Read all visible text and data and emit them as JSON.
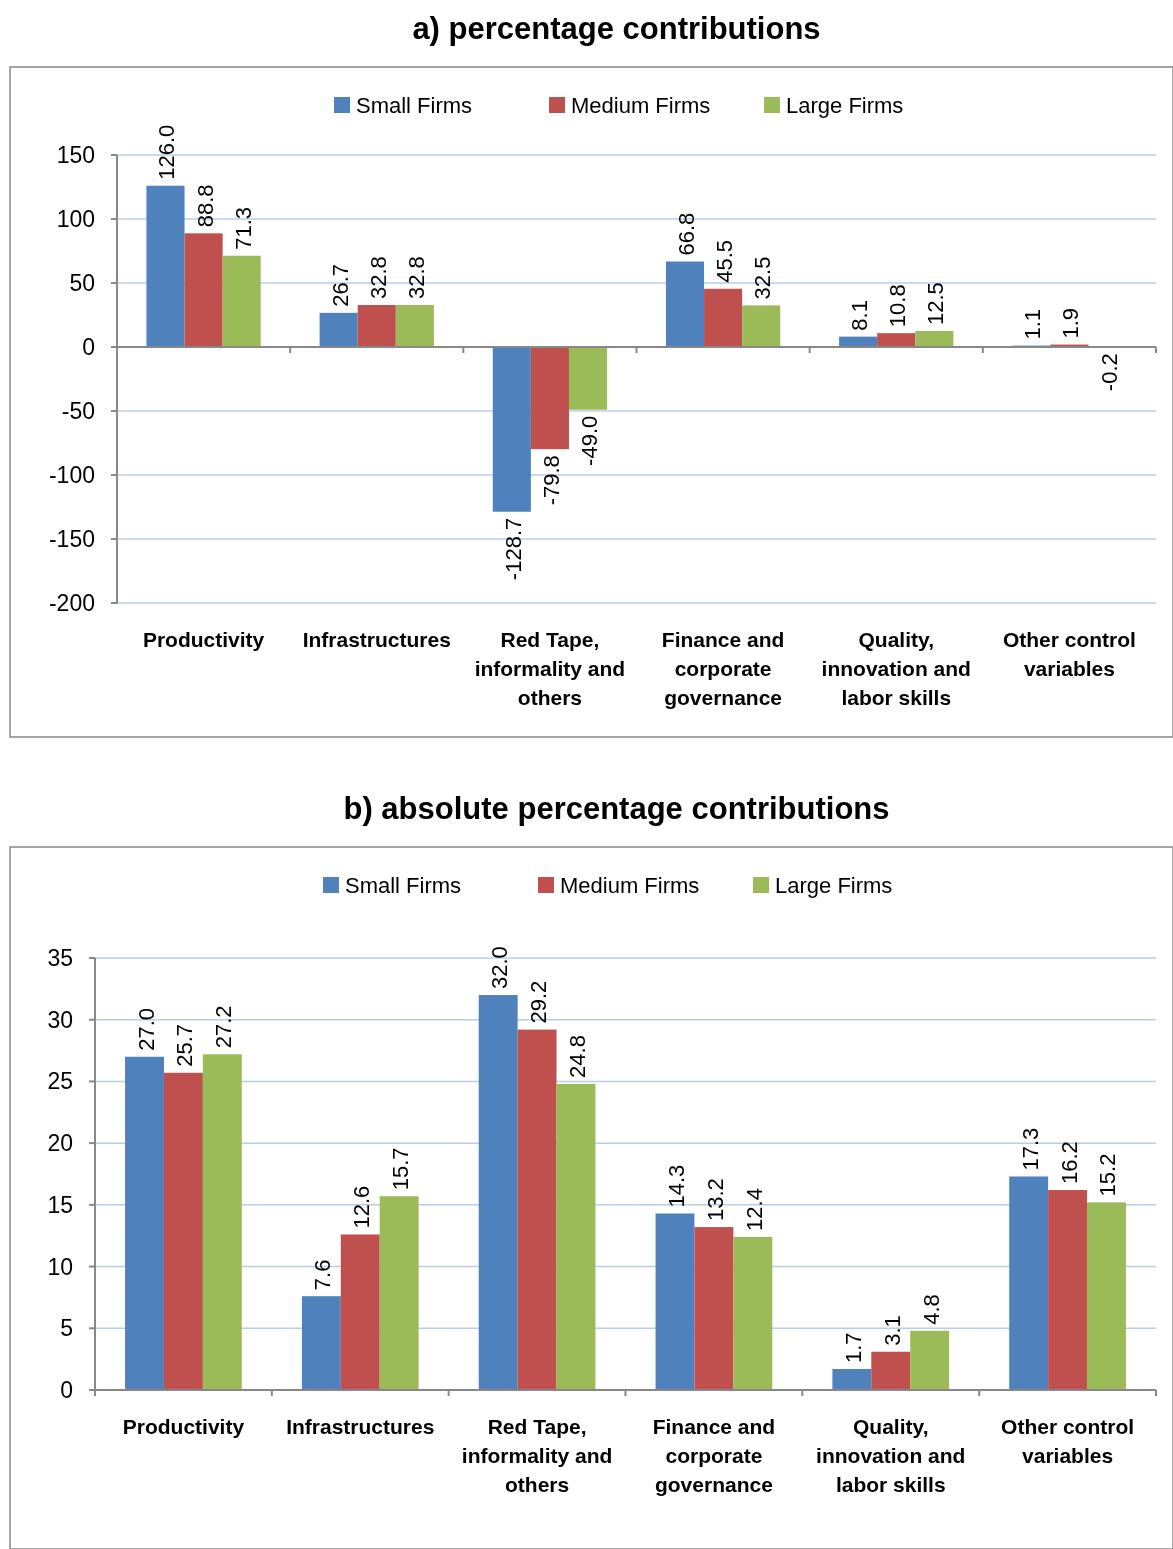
{
  "chart_data": [
    {
      "type": "bar",
      "title": "a)  percentage contributions",
      "categories": [
        "Productivity",
        "Infrastructures",
        "Red Tape, informality and others",
        "Finance and corporate governance",
        "Quality, innovation and labor skills",
        "Other control variables"
      ],
      "series": [
        {
          "name": "Small Firms",
          "color": "#4f81bd",
          "values": [
            126.0,
            26.7,
            -128.7,
            66.8,
            8.1,
            1.1
          ],
          "value_labels": [
            "126.0",
            "26.7",
            "-128.7",
            "66.8",
            "8.1",
            "1.1"
          ]
        },
        {
          "name": "Medium Firms",
          "color": "#c0504d",
          "values": [
            88.8,
            32.8,
            -79.8,
            45.5,
            10.8,
            1.9
          ],
          "value_labels": [
            "88.8",
            "32.8",
            "-79.8",
            "45.5",
            "10.8",
            "1.9"
          ]
        },
        {
          "name": "Large Firms",
          "color": "#9bbb59",
          "values": [
            71.3,
            32.8,
            -49.0,
            32.5,
            12.5,
            -0.2
          ],
          "value_labels": [
            "71.3",
            "32.8",
            "-49.0",
            "32.5",
            "12.5",
            "-0.2"
          ]
        }
      ],
      "ylim": [
        -200,
        150
      ],
      "yticks": [
        -200,
        -150,
        -100,
        -50,
        0,
        50,
        100,
        150
      ],
      "grid": "y",
      "legend": "top"
    },
    {
      "type": "bar",
      "title": "b)  absolute percentage contributions",
      "categories": [
        "Productivity",
        "Infrastructures",
        "Red Tape, informality and others",
        "Finance and corporate governance",
        "Quality, innovation and labor skills",
        "Other control variables"
      ],
      "series": [
        {
          "name": "Small Firms",
          "color": "#4f81bd",
          "values": [
            27.0,
            7.6,
            32.0,
            14.3,
            1.7,
            17.3
          ],
          "value_labels": [
            "27.0",
            "7.6",
            "32.0",
            "14.3",
            "1.7",
            "17.3"
          ]
        },
        {
          "name": "Medium Firms",
          "color": "#c0504d",
          "values": [
            25.7,
            12.6,
            29.2,
            13.2,
            3.1,
            16.2
          ],
          "value_labels": [
            "25.7",
            "12.6",
            "29.2",
            "13.2",
            "3.1",
            "16.2"
          ]
        },
        {
          "name": "Large Firms",
          "color": "#9bbb59",
          "values": [
            27.2,
            15.7,
            24.8,
            12.4,
            4.8,
            15.2
          ],
          "value_labels": [
            "27.2",
            "15.7",
            "24.8",
            "12.4",
            "4.8",
            "15.2"
          ]
        }
      ],
      "ylim": [
        0,
        35
      ],
      "yticks": [
        0,
        5,
        10,
        15,
        20,
        25,
        30,
        35
      ],
      "grid": "y",
      "legend": "top"
    }
  ]
}
